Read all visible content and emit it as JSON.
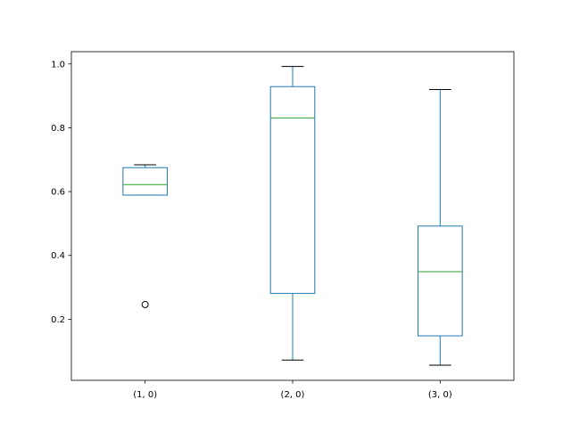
{
  "chart_data": {
    "type": "box",
    "categories": [
      "(1, 0)",
      "(2, 0)",
      "(3, 0)"
    ],
    "boxes": [
      {
        "category": "(1, 0)",
        "whisker_low": 0.589,
        "q1": 0.589,
        "median": 0.622,
        "q3": 0.675,
        "whisker_high": 0.684,
        "outliers": [
          0.246
        ]
      },
      {
        "category": "(2, 0)",
        "whisker_low": 0.072,
        "q1": 0.281,
        "median": 0.831,
        "q3": 0.929,
        "whisker_high": 0.992,
        "outliers": []
      },
      {
        "category": "(3, 0)",
        "whisker_low": 0.056,
        "q1": 0.148,
        "median": 0.349,
        "q3": 0.492,
        "whisker_high": 0.92,
        "outliers": []
      }
    ],
    "yticks": [
      "0.2",
      "0.4",
      "0.6",
      "0.8",
      "1.0"
    ],
    "ylim": [
      0.0085,
      1.0385
    ],
    "title": "",
    "xlabel": "",
    "ylabel": "",
    "grid": false,
    "colors": {
      "box": "#1f77b4",
      "median": "#2ca02c",
      "whisker": "#1f77b4",
      "cap": "#000000",
      "flier": "#000000"
    }
  }
}
